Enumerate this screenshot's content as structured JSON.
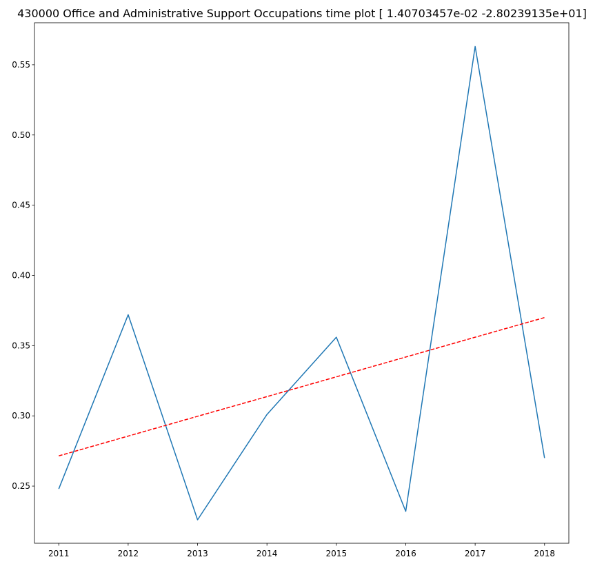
{
  "chart_data": {
    "type": "line",
    "title": "430000 Office and Administrative Support Occupations time plot [ 1.40703457e-02 -2.80239135e+01]",
    "xlabel": "",
    "ylabel": "",
    "x": [
      2011,
      2012,
      2013,
      2014,
      2015,
      2016,
      2017,
      2018
    ],
    "x_ticks": [
      "2011",
      "2012",
      "2013",
      "2014",
      "2015",
      "2016",
      "2017",
      "2018"
    ],
    "y_ticks": [
      "0.25",
      "0.30",
      "0.35",
      "0.40",
      "0.45",
      "0.50",
      "0.55"
    ],
    "y_tick_values": [
      0.25,
      0.3,
      0.35,
      0.4,
      0.45,
      0.5,
      0.55
    ],
    "xlim": [
      2010.65,
      2018.35
    ],
    "ylim": [
      0.2093,
      0.5799
    ],
    "grid": false,
    "series": [
      {
        "values": [
          0.248,
          0.372,
          0.226,
          0.301,
          0.356,
          0.232,
          0.563,
          0.27
        ],
        "color": "#1f77b4",
        "style": "solid"
      },
      {
        "values": [
          0.2715,
          0.2856,
          0.2997,
          0.3137,
          0.3278,
          0.3419,
          0.356,
          0.37
        ],
        "color": "#ff0000",
        "style": "dashed"
      }
    ]
  }
}
